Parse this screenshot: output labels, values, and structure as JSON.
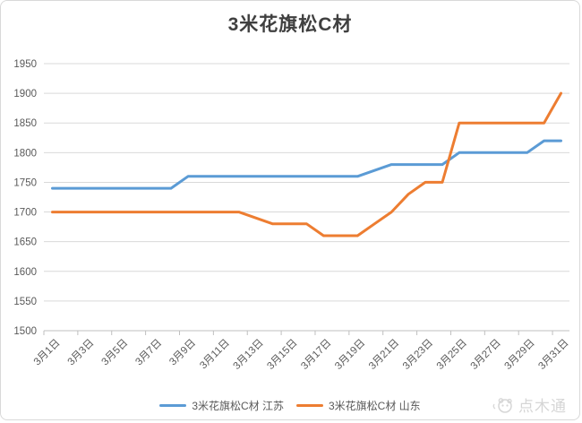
{
  "chart_data": {
    "type": "line",
    "title": "3米花旗松C材",
    "categories": [
      "3月1日",
      "3月2日",
      "3月3日",
      "3月4日",
      "3月5日",
      "3月6日",
      "3月7日",
      "3月8日",
      "3月9日",
      "3月10日",
      "3月11日",
      "3月12日",
      "3月13日",
      "3月14日",
      "3月15日",
      "3月16日",
      "3月17日",
      "3月18日",
      "3月19日",
      "3月20日",
      "3月21日",
      "3月22日",
      "3月23日",
      "3月24日",
      "3月25日",
      "3月26日",
      "3月27日",
      "3月28日",
      "3月29日",
      "3月30日",
      "3月31日"
    ],
    "x_label_interval": 2,
    "x_tick_labels": [
      "3月1日",
      "3月3日",
      "3月5日",
      "3月7日",
      "3月9日",
      "3月11日",
      "3月13日",
      "3月15日",
      "3月17日",
      "3月19日",
      "3月21日",
      "3月23日",
      "3月25日",
      "3月27日",
      "3月29日",
      "3月31日"
    ],
    "series": [
      {
        "name": "3米花旗松C材 江苏",
        "color": "#5B9BD5",
        "values": [
          1740,
          1740,
          1740,
          1740,
          1740,
          1740,
          1740,
          1740,
          1760,
          1760,
          1760,
          1760,
          1760,
          1760,
          1760,
          1760,
          1760,
          1760,
          1760,
          1770,
          1780,
          1780,
          1780,
          1780,
          1800,
          1800,
          1800,
          1800,
          1800,
          1820,
          1820
        ]
      },
      {
        "name": "3米花旗松C材 山东",
        "color": "#ED7D31",
        "values": [
          1700,
          1700,
          1700,
          1700,
          1700,
          1700,
          1700,
          1700,
          1700,
          1700,
          1700,
          1700,
          1690,
          1680,
          1680,
          1680,
          1660,
          1660,
          1660,
          1680,
          1700,
          1730,
          1750,
          1750,
          1850,
          1850,
          1850,
          1850,
          1850,
          1850,
          1900
        ]
      }
    ],
    "ylim": [
      1500,
      1950
    ],
    "y_ticks": [
      1500,
      1550,
      1600,
      1650,
      1700,
      1750,
      1800,
      1850,
      1900,
      1950
    ],
    "grid": "horizontal",
    "legend_position": "bottom"
  },
  "watermark": {
    "text": "点木通"
  },
  "colors": {
    "title": "#404040",
    "tick_label": "#595959",
    "gridline": "#d9d9d9",
    "axis_line": "#bfbfbf",
    "watermark": "#d6d6d6"
  }
}
